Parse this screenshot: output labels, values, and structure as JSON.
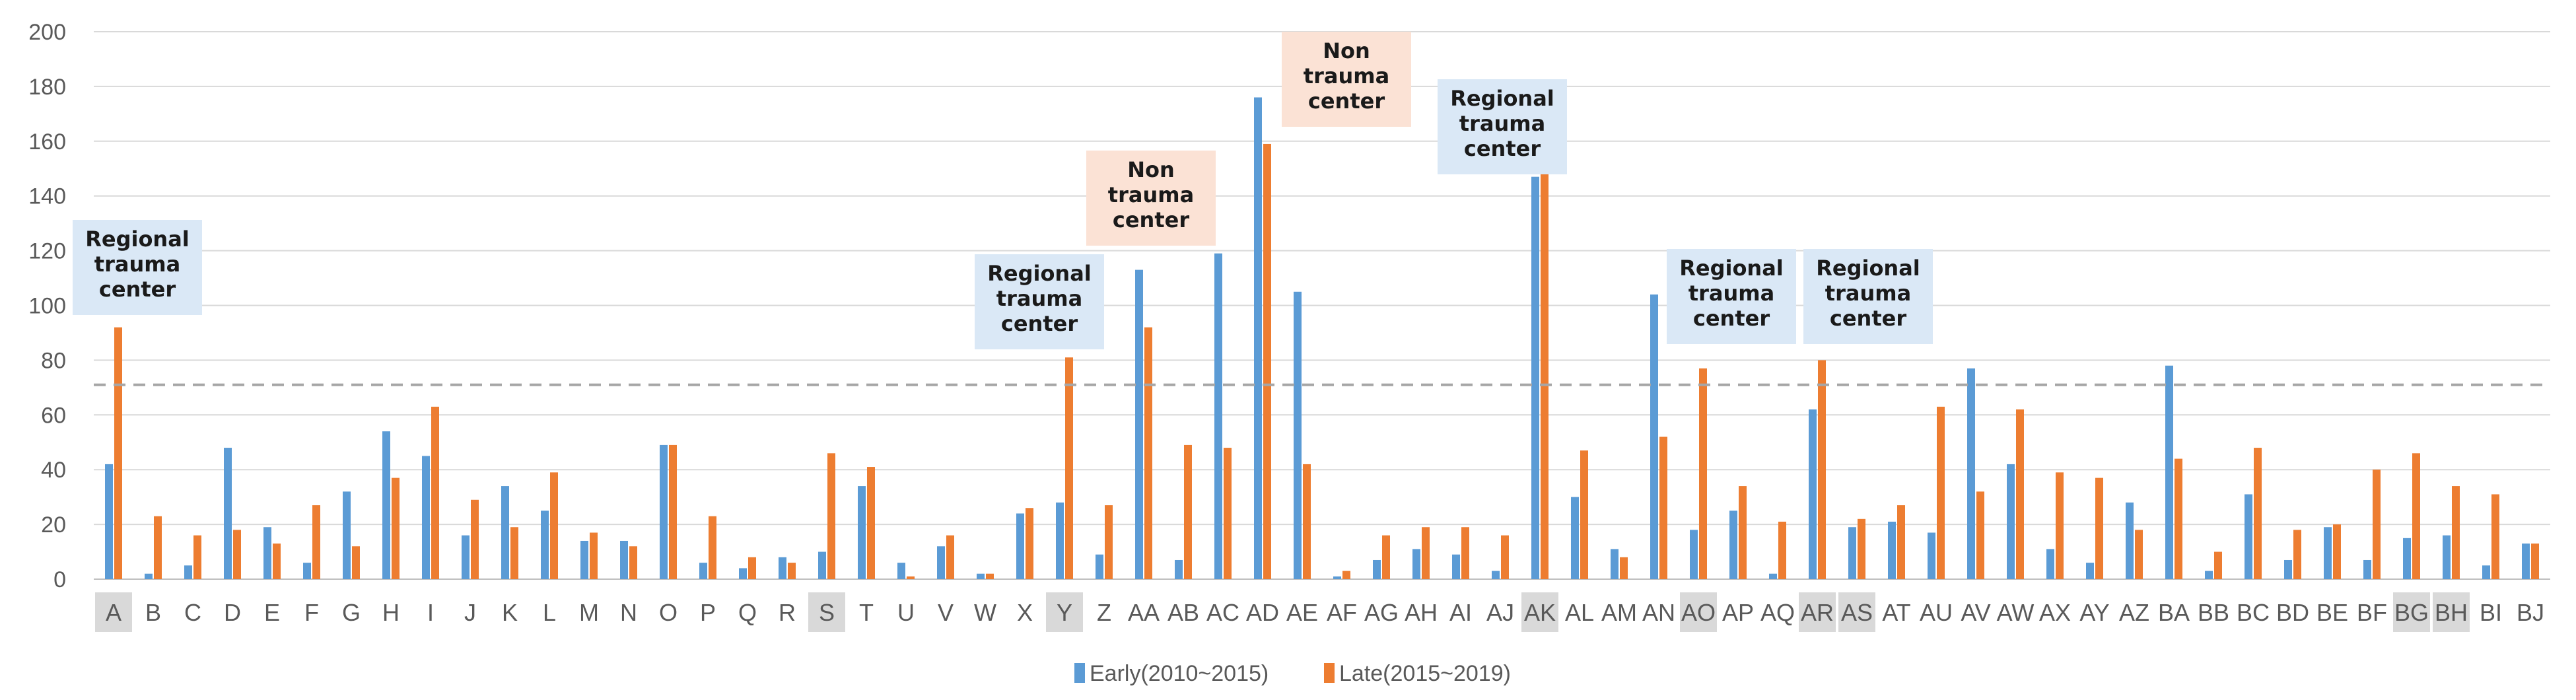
{
  "chart_data": {
    "type": "bar",
    "title": "",
    "xlabel": "",
    "ylabel": "",
    "ylim": [
      0,
      200
    ],
    "yticks": [
      0,
      20,
      40,
      60,
      80,
      100,
      120,
      140,
      160,
      180,
      200
    ],
    "grid": true,
    "legend_position": "bottom",
    "reference_line": {
      "value": 71,
      "style": "dashed"
    },
    "categories": [
      "A",
      "B",
      "C",
      "D",
      "E",
      "F",
      "G",
      "H",
      "I",
      "J",
      "K",
      "L",
      "M",
      "N",
      "O",
      "P",
      "Q",
      "R",
      "S",
      "T",
      "U",
      "V",
      "W",
      "X",
      "Y",
      "Z",
      "AA",
      "AB",
      "AC",
      "AD",
      "AE",
      "AF",
      "AG",
      "AH",
      "AI",
      "AJ",
      "AK",
      "AL",
      "AM",
      "AN",
      "AO",
      "AP",
      "AQ",
      "AR",
      "AS",
      "AT",
      "AU",
      "AV",
      "AW",
      "AX",
      "AY",
      "AZ",
      "BA",
      "BB",
      "BC",
      "BD",
      "BE",
      "BF",
      "BG",
      "BH",
      "BI",
      "BJ"
    ],
    "highlighted_categories": [
      "A",
      "S",
      "Y",
      "AK",
      "AO",
      "AR",
      "AS",
      "BG",
      "BH"
    ],
    "series": [
      {
        "name": "Early(2010~2015)",
        "color": "#5b9bd5",
        "values": [
          42,
          2,
          5,
          48,
          19,
          6,
          32,
          54,
          45,
          16,
          34,
          25,
          14,
          14,
          49,
          6,
          4,
          8,
          10,
          34,
          6,
          12,
          2,
          24,
          28,
          9,
          113,
          7,
          119,
          176,
          105,
          1,
          7,
          11,
          9,
          3,
          147,
          30,
          11,
          104,
          18,
          25,
          2,
          62,
          19,
          21,
          17,
          77,
          42,
          11,
          6,
          28,
          78,
          3,
          31,
          7,
          19,
          7,
          15,
          16,
          5,
          13
        ]
      },
      {
        "name": "Late(2015~2019)",
        "color": "#ed7d31",
        "values": [
          92,
          23,
          16,
          18,
          13,
          27,
          12,
          37,
          63,
          29,
          19,
          39,
          17,
          12,
          49,
          23,
          8,
          6,
          46,
          41,
          1,
          16,
          2,
          26,
          81,
          27,
          92,
          49,
          48,
          159,
          42,
          3,
          16,
          19,
          19,
          16,
          151,
          47,
          8,
          52,
          77,
          34,
          21,
          80,
          22,
          27,
          63,
          32,
          62,
          39,
          37,
          18,
          44,
          10,
          48,
          18,
          20,
          40,
          46,
          34,
          31,
          13
        ]
      }
    ],
    "annotations": [
      {
        "category": "A",
        "lines": [
          "Regional",
          "trauma",
          "center"
        ],
        "kind": "regional"
      },
      {
        "category": "Y",
        "lines": [
          "Regional",
          "trauma",
          "center"
        ],
        "kind": "regional"
      },
      {
        "category": "AA",
        "lines": [
          "Non",
          "trauma",
          "center"
        ],
        "kind": "non"
      },
      {
        "category": "AD",
        "lines": [
          "Non",
          "trauma",
          "center"
        ],
        "kind": "non"
      },
      {
        "category": "AK",
        "lines": [
          "Regional",
          "trauma",
          "center"
        ],
        "kind": "regional"
      },
      {
        "category": "AO",
        "lines": [
          "Regional",
          "trauma",
          "center"
        ],
        "kind": "regional"
      },
      {
        "category": "AR",
        "lines": [
          "Regional",
          "trauma",
          "center"
        ],
        "kind": "regional"
      }
    ],
    "annotation_colors": {
      "regional": "#dae8f6",
      "non": "#fbe2d5"
    },
    "highlight_color": "#d9d9d9",
    "gridline_color": "#d9d9d9",
    "axis_color": "#bfbfbf",
    "reference_line_color": "#a6a6a6"
  }
}
